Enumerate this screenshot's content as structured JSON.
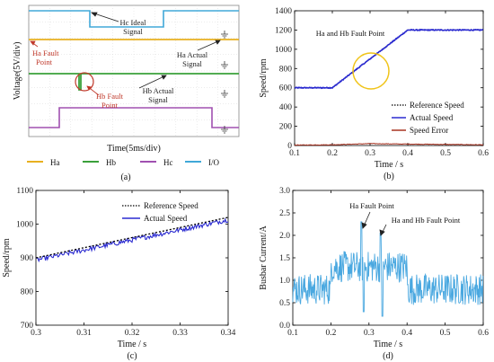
{
  "chart_data": [
    {
      "panel": "(a)",
      "type": "oscilloscope",
      "ylabel": "Voltage(5V/div)",
      "xlabel": "Time(5ms/div)",
      "legend": [
        {
          "name": "Ha",
          "color": "#e8b020"
        },
        {
          "name": "Hb",
          "color": "#3aa03a"
        },
        {
          "name": "Hc",
          "color": "#a050b0"
        },
        {
          "name": "I/O",
          "color": "#40a8d8"
        }
      ],
      "annotations": {
        "hc_ideal": "Hc Ideal Signal",
        "ha_fault": "Ha Fault Point",
        "ha_actual": "Ha Actual Signal",
        "hb_fault": "Hb Fault Point",
        "hb_actual": "Hb Actual Signal"
      }
    },
    {
      "panel": "(b)",
      "type": "line",
      "xlabel": "Time / s",
      "ylabel": "Speed/rpm",
      "xlim": [
        0.1,
        0.6
      ],
      "ylim": [
        0,
        1400
      ],
      "xticks": [
        0.1,
        0.2,
        0.3,
        0.4,
        0.5,
        0.6
      ],
      "yticks": [
        0,
        200,
        400,
        600,
        800,
        1000,
        1200,
        1400
      ],
      "annotation": "Ha and Hb Fault Point",
      "series": [
        {
          "name": "Reference Speed",
          "style": "dotted",
          "color": "#000000",
          "x": [
            0.1,
            0.2,
            0.4,
            0.6
          ],
          "y": [
            600,
            600,
            1200,
            1200
          ]
        },
        {
          "name": "Actual Speed",
          "style": "solid",
          "color": "#2a2ad0",
          "x": [
            0.1,
            0.2,
            0.4,
            0.6
          ],
          "y": [
            600,
            600,
            1200,
            1200
          ]
        },
        {
          "name": "Speed Error",
          "style": "solid",
          "color": "#a83220",
          "x": [
            0.1,
            0.2,
            0.3,
            0.4,
            0.6
          ],
          "y": [
            5,
            8,
            20,
            15,
            8
          ]
        }
      ]
    },
    {
      "panel": "(c)",
      "type": "line",
      "xlabel": "Time / s",
      "ylabel": "Speed/rpm",
      "xlim": [
        0.3,
        0.34
      ],
      "ylim": [
        700,
        1100
      ],
      "xticks": [
        0.3,
        0.31,
        0.32,
        0.33,
        0.34
      ],
      "yticks": [
        700,
        800,
        900,
        1000,
        1100
      ],
      "series": [
        {
          "name": "Reference Speed",
          "style": "dotted",
          "color": "#000000",
          "x": [
            0.3,
            0.34
          ],
          "y": [
            900,
            1020
          ]
        },
        {
          "name": "Actual Speed",
          "style": "solid",
          "color": "#2a2ad0",
          "x": [
            0.3,
            0.34
          ],
          "y": [
            893,
            1013
          ]
        }
      ]
    },
    {
      "panel": "(d)",
      "type": "line",
      "xlabel": "Time / s",
      "ylabel": "Busbar Current/A",
      "xlim": [
        0.1,
        0.6
      ],
      "ylim": [
        0,
        3.0
      ],
      "xticks": [
        0.1,
        0.2,
        0.3,
        0.4,
        0.5,
        0.6
      ],
      "yticks": [
        0,
        0.5,
        1.0,
        1.5,
        2.0,
        2.5,
        3.0
      ],
      "annotations": [
        "Ha Fault Point",
        "Ha and Hb Fault Point"
      ],
      "series": [
        {
          "name": "Busbar Current",
          "style": "solid",
          "color": "#4aa8e0",
          "x": [
            0.1,
            0.2,
            0.28,
            0.33,
            0.4,
            0.6
          ],
          "y": [
            0.8,
            1.3,
            2.3,
            2.05,
            1.3,
            0.8
          ]
        }
      ]
    }
  ],
  "text": {
    "a_ylabel": "Voltage(5V/div)",
    "a_xlabel": "Time(5ms/div)",
    "a_cap": "(a)",
    "hc_ideal_1": "Hc Ideal",
    "hc_ideal_2": "Signal",
    "ha_fault_1": "Ha Fault",
    "ha_fault_2": "Point",
    "ha_actual_1": "Ha Actual",
    "ha_actual_2": "Signal",
    "hb_fault_1": "Hb Fault",
    "hb_fault_2": "Point",
    "hb_actual_1": "Hb Actual",
    "hb_actual_2": "Signal",
    "leg_a": "Ha",
    "leg_b": "Hb",
    "leg_c": "Hc",
    "leg_io": "I/O",
    "b_ylabel": "Speed/rpm",
    "b_xlabel": "Time / s",
    "b_cap": "(b)",
    "b_ann": "Ha and Hb Fault Point",
    "b_leg_ref": "Reference Speed",
    "b_leg_act": "Actual Speed",
    "b_leg_err": "Speed Error",
    "c_ylabel": "Speed/rpm",
    "c_xlabel": "Time / s",
    "c_cap": "(c)",
    "c_leg_ref": "Reference Speed",
    "c_leg_act": "Actual Speed",
    "d_ylabel": "Busbar Current/A",
    "d_xlabel": "Time / s",
    "d_cap": "(d)",
    "d_ann1": "Ha Fault Point",
    "d_ann2": "Ha and Hb Fault Point"
  }
}
